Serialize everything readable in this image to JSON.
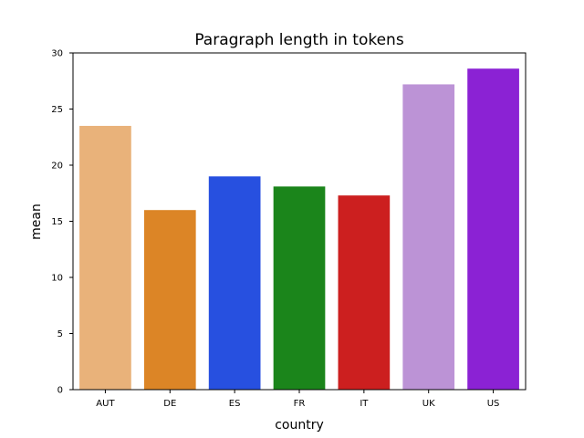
{
  "chart_data": {
    "type": "bar",
    "title": "Paragraph length in tokens",
    "xlabel": "country",
    "ylabel": "mean",
    "categories": [
      "AUT",
      "DE",
      "ES",
      "FR",
      "IT",
      "UK",
      "US"
    ],
    "values": [
      23.5,
      16.0,
      19.0,
      18.1,
      17.3,
      27.2,
      28.6
    ],
    "colors": [
      "#e9b27a",
      "#dc8526",
      "#2750e0",
      "#1b851b",
      "#cc1f1f",
      "#bc93d6",
      "#8b22d4"
    ],
    "ylim": [
      0,
      30
    ],
    "yticks": [
      "0",
      "5",
      "10",
      "15",
      "20",
      "25",
      "30"
    ],
    "grid": false
  }
}
